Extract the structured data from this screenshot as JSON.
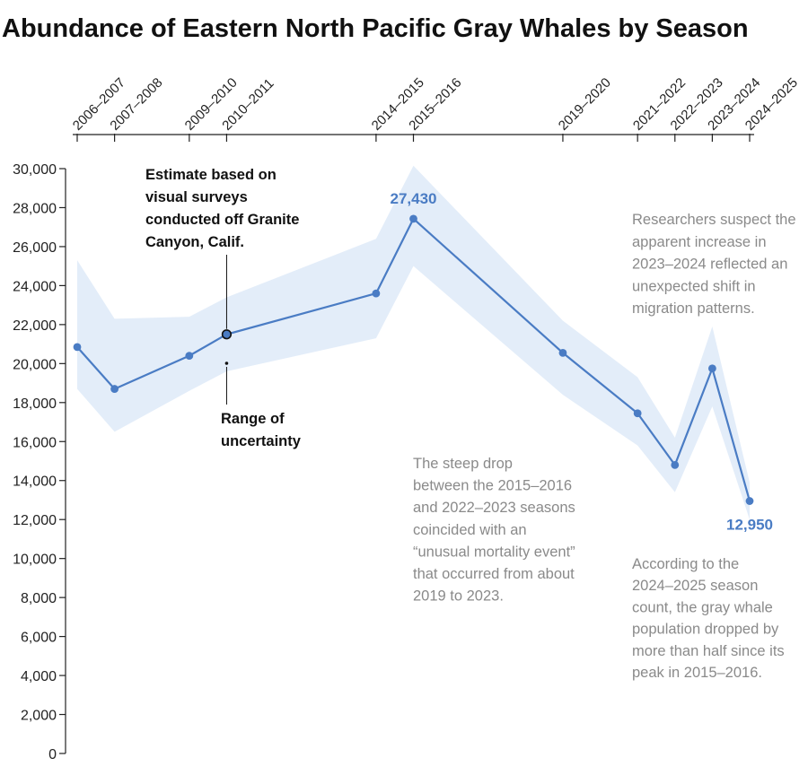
{
  "chart_data": {
    "type": "line",
    "title": "Abundance of Eastern North Pacific Gray Whales by Season",
    "x_axis_position": "top",
    "ylim": [
      0,
      30000
    ],
    "yticks": [
      "0",
      "2,000",
      "4,000",
      "6,000",
      "8,000",
      "10,000",
      "12,000",
      "14,000",
      "16,000",
      "18,000",
      "20,000",
      "22,000",
      "24,000",
      "26,000",
      "28,000",
      "30,000"
    ],
    "series": [
      {
        "x": [
          2006,
          2007,
          2009,
          2010,
          2014,
          2015,
          2019,
          2021,
          2022,
          2023,
          2024
        ],
        "categories": [
          "2006–2007",
          "2007–2008",
          "2009–2010",
          "2010–2011",
          "2014–2015",
          "2015–2016",
          "2019–2020",
          "2021–2022",
          "2022–2023",
          "2023–2024",
          "2024–2025"
        ],
        "values": [
          20850,
          18700,
          20400,
          21500,
          23600,
          27430,
          20550,
          17450,
          14800,
          19750,
          12950
        ],
        "lower": [
          18700,
          16500,
          18600,
          19600,
          21300,
          25000,
          18400,
          15800,
          13400,
          17800,
          12000
        ],
        "upper": [
          25300,
          22300,
          22400,
          23400,
          26400,
          30150,
          22200,
          19300,
          16200,
          21900,
          13900
        ]
      }
    ],
    "value_labels": [
      "27,430",
      "12,950"
    ],
    "annotations": {
      "estimate": [
        "Estimate based on",
        "visual surveys",
        "conducted off Granite",
        "Canyon, Calif."
      ],
      "range": [
        "Range of",
        "uncertainty"
      ],
      "researchers": [
        "Researchers suspect the",
        "apparent increase in",
        "2023–2024 reflected an",
        "unexpected shift in",
        "migration patterns."
      ],
      "steep_drop": [
        "The steep drop",
        "between the 2015–2016",
        "and 2022–2023 seasons",
        "coincided with an",
        "“unusual mortality event”",
        "that occurred from about",
        "2019 to 2023."
      ],
      "according": [
        "According to the",
        "2024–2025 season",
        "count, the gray whale",
        "population dropped by",
        "more than half since its",
        "peak in 2015–2016."
      ]
    },
    "colors": {
      "line": "#4a7cc4",
      "band": "#e3edf9",
      "value_label": "#4a7cc4",
      "annotation_gray": "#8a8a8a",
      "annotation_dark": "#111111",
      "axis": "#222222"
    }
  }
}
